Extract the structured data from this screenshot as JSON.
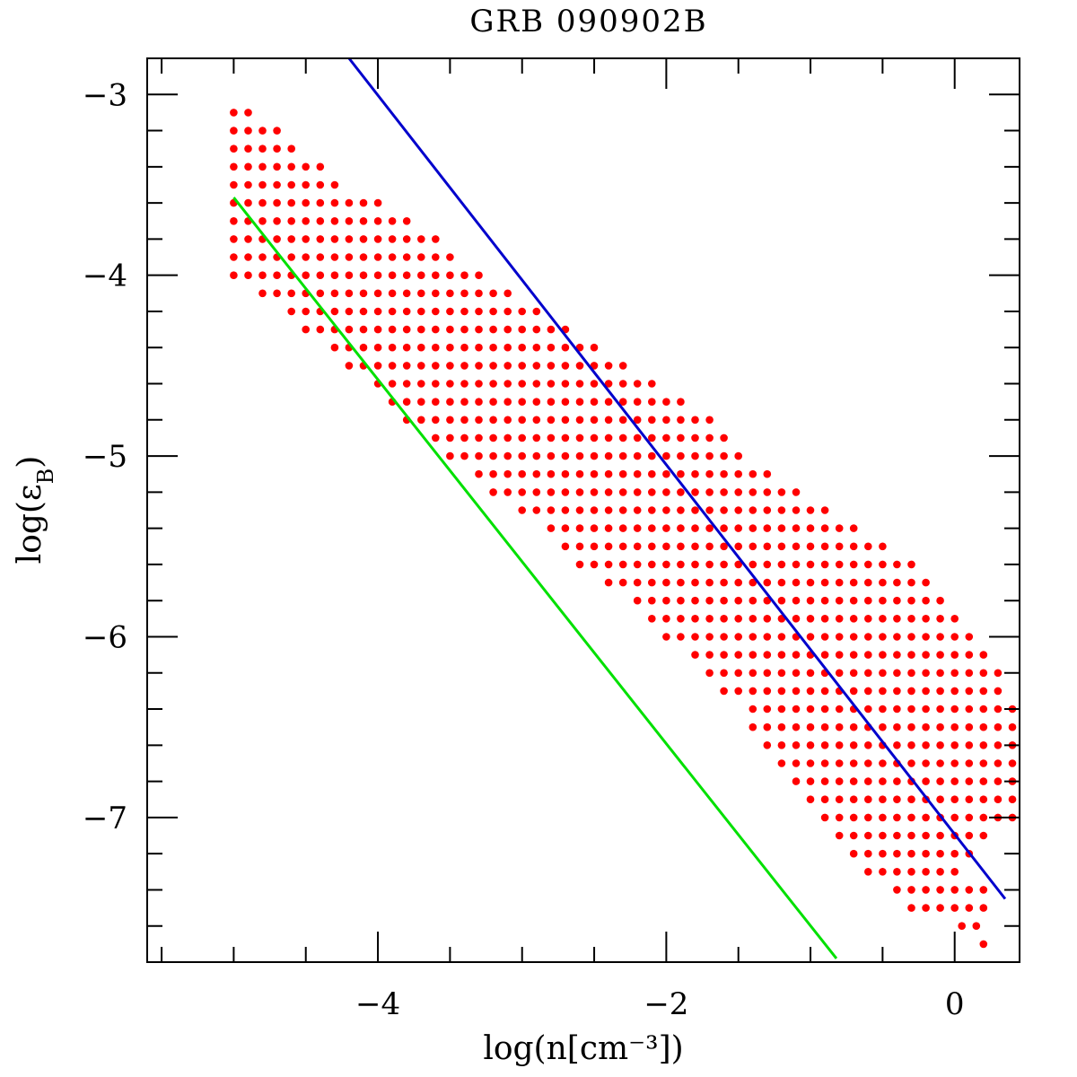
{
  "chart_data": {
    "type": "scatter",
    "title": "GRB 090902B",
    "xlabel": "log(n[cm⁻³])",
    "ylabel": {
      "prefix": "log(ε",
      "subscript": "B",
      "suffix": ")"
    },
    "xlim": [
      -5.6,
      0.45
    ],
    "ylim": [
      -7.8,
      -2.8
    ],
    "x_ticks": [
      -4,
      -2,
      0
    ],
    "x_tick_labels": [
      "−4",
      "−2",
      "0"
    ],
    "y_ticks": [
      -3,
      -4,
      -5,
      -6,
      -7
    ],
    "y_tick_labels": [
      "−3",
      "−4",
      "−5",
      "−6",
      "−7"
    ],
    "x_minor_step": 0.5,
    "y_minor_step": 0.2,
    "grid": false,
    "series": [
      {
        "name": "allowed region",
        "kind": "points",
        "color": "#ff0000",
        "grid_step": {
          "x": 0.1,
          "y": 0.1
        },
        "rows": [
          {
            "y": -3.1,
            "x_min": -5.0,
            "x_max": -4.9
          },
          {
            "y": -3.2,
            "x_min": -5.0,
            "x_max": -4.7
          },
          {
            "y": -3.3,
            "x_min": -5.0,
            "x_max": -4.6
          },
          {
            "y": -3.4,
            "x_min": -5.0,
            "x_max": -4.4
          },
          {
            "y": -3.5,
            "x_min": -5.0,
            "x_max": -4.3
          },
          {
            "y": -3.6,
            "x_min": -5.0,
            "x_max": -4.0
          },
          {
            "y": -3.7,
            "x_min": -5.0,
            "x_max": -3.8
          },
          {
            "y": -3.8,
            "x_min": -5.0,
            "x_max": -3.6
          },
          {
            "y": -3.9,
            "x_min": -5.0,
            "x_max": -3.5
          },
          {
            "y": -4.0,
            "x_min": -5.0,
            "x_max": -3.3
          },
          {
            "y": -4.1,
            "x_min": -4.8,
            "x_max": -3.1
          },
          {
            "y": -4.2,
            "x_min": -4.6,
            "x_max": -2.9
          },
          {
            "y": -4.3,
            "x_min": -4.5,
            "x_max": -2.7
          },
          {
            "y": -4.4,
            "x_min": -4.3,
            "x_max": -2.5
          },
          {
            "y": -4.5,
            "x_min": -4.2,
            "x_max": -2.3
          },
          {
            "y": -4.6,
            "x_min": -4.0,
            "x_max": -2.1
          },
          {
            "y": -4.7,
            "x_min": -3.9,
            "x_max": -1.9
          },
          {
            "y": -4.8,
            "x_min": -3.8,
            "x_max": -1.7
          },
          {
            "y": -4.9,
            "x_min": -3.6,
            "x_max": -1.6
          },
          {
            "y": -5.0,
            "x_min": -3.5,
            "x_max": -1.5
          },
          {
            "y": -5.1,
            "x_min": -3.3,
            "x_max": -1.3
          },
          {
            "y": -5.2,
            "x_min": -3.2,
            "x_max": -1.1
          },
          {
            "y": -5.3,
            "x_min": -3.0,
            "x_max": -0.9
          },
          {
            "y": -5.4,
            "x_min": -2.8,
            "x_max": -0.7
          },
          {
            "y": -5.5,
            "x_min": -2.7,
            "x_max": -0.5
          },
          {
            "y": -5.6,
            "x_min": -2.6,
            "x_max": -0.3
          },
          {
            "y": -5.7,
            "x_min": -2.4,
            "x_max": -0.2
          },
          {
            "y": -5.8,
            "x_min": -2.2,
            "x_max": -0.1
          },
          {
            "y": -5.9,
            "x_min": -2.1,
            "x_max": 0.0
          },
          {
            "y": -6.0,
            "x_min": -2.0,
            "x_max": 0.1
          },
          {
            "y": -6.1,
            "x_min": -1.8,
            "x_max": 0.2
          },
          {
            "y": -6.2,
            "x_min": -1.7,
            "x_max": 0.3
          },
          {
            "y": -6.3,
            "x_min": -1.6,
            "x_max": 0.35
          },
          {
            "y": -6.4,
            "x_min": -1.4,
            "x_max": 0.4
          },
          {
            "y": -6.5,
            "x_min": -1.4,
            "x_max": 0.4
          },
          {
            "y": -6.6,
            "x_min": -1.3,
            "x_max": 0.45
          },
          {
            "y": -6.7,
            "x_min": -1.2,
            "x_max": 0.45
          },
          {
            "y": -6.8,
            "x_min": -1.1,
            "x_max": 0.45
          },
          {
            "y": -6.9,
            "x_min": -1.0,
            "x_max": 0.45
          },
          {
            "y": -7.0,
            "x_min": -0.9,
            "x_max": 0.45
          },
          {
            "y": -7.1,
            "x_min": -0.8,
            "x_max": 0.2
          },
          {
            "y": -7.2,
            "x_min": -0.7,
            "x_max": 0.1
          },
          {
            "y": -7.3,
            "x_min": -0.6,
            "x_max": 0.0
          },
          {
            "y": -7.4,
            "x_min": -0.4,
            "x_max": 0.2
          },
          {
            "y": -7.5,
            "x_min": -0.3,
            "x_max": 0.2
          },
          {
            "y": -7.6,
            "x_min": 0.05,
            "x_max": 0.2
          },
          {
            "y": -7.7,
            "x_min": 0.2,
            "x_max": 0.2
          }
        ]
      },
      {
        "name": "blue line",
        "kind": "line",
        "color": "#0000cc",
        "x": [
          -4.2,
          0.35
        ],
        "y": [
          -2.8,
          -7.45
        ]
      },
      {
        "name": "green line",
        "kind": "line",
        "color": "#00e000",
        "x": [
          -5.0,
          -0.82
        ],
        "y": [
          -3.57,
          -7.78
        ]
      }
    ]
  }
}
